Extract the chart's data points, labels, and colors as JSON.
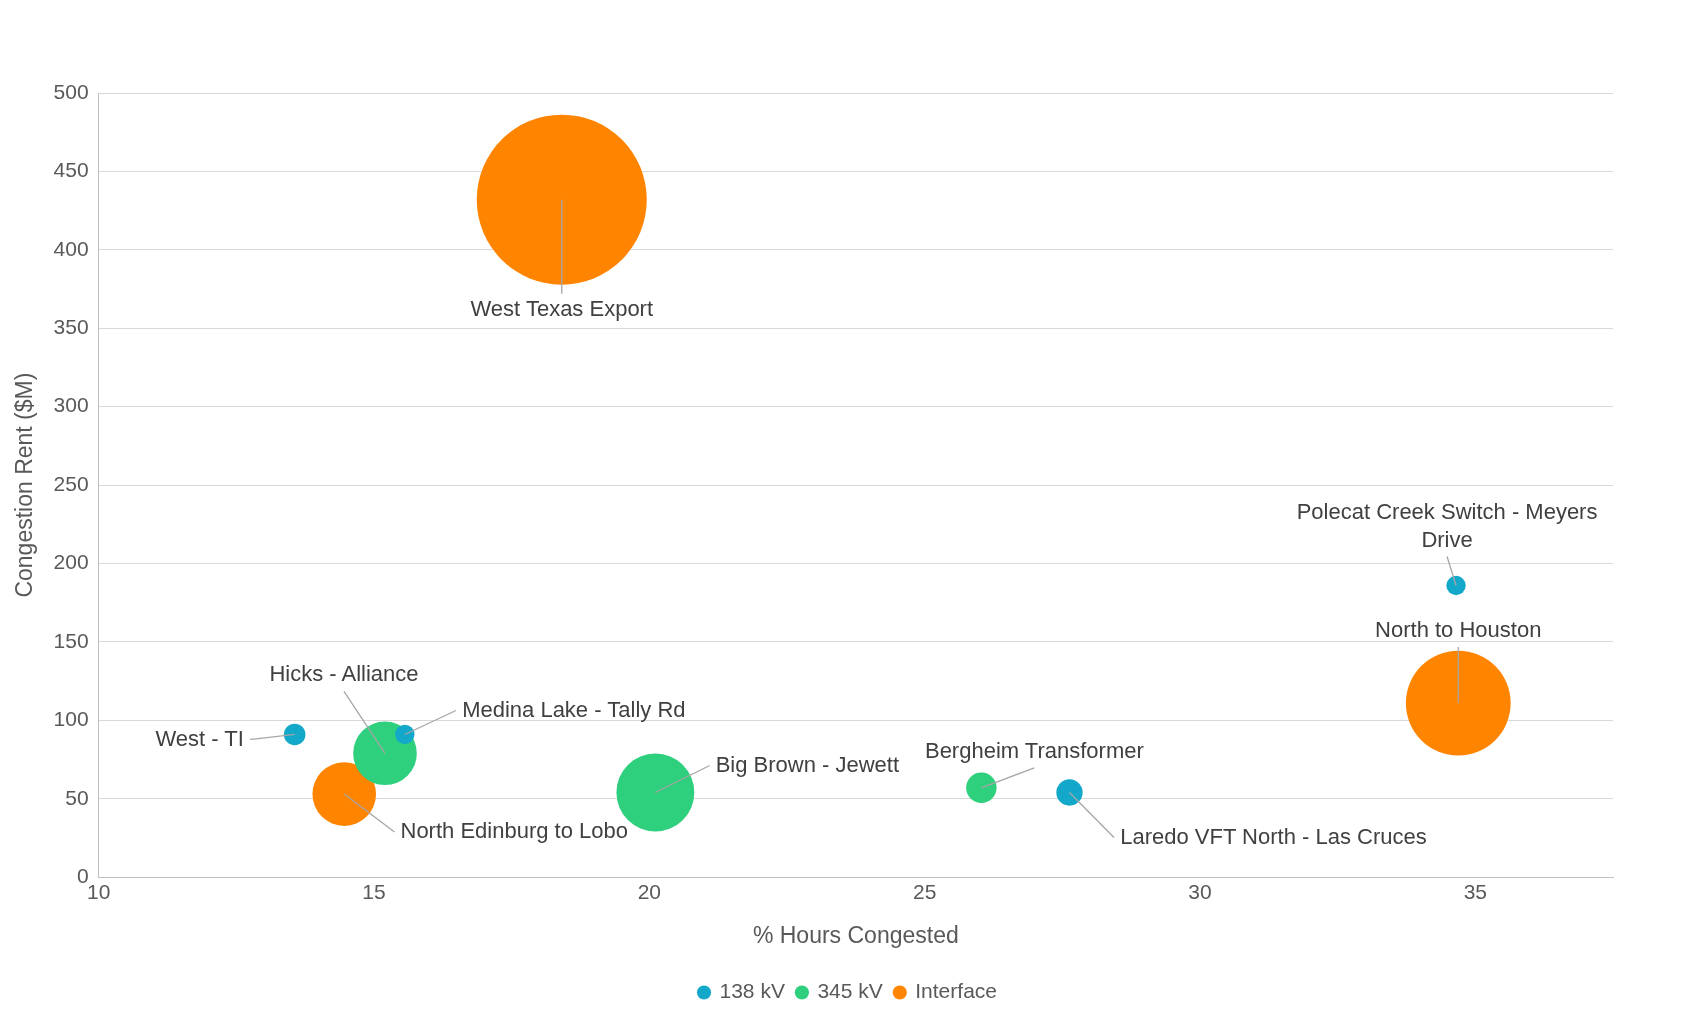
{
  "chart_data": {
    "type": "bubble",
    "xlabel": "% Hours Congested",
    "ylabel": "Congestion Rent ($M)",
    "xlim": [
      10,
      37.5
    ],
    "xticks": [
      10,
      15,
      20,
      25,
      30,
      35
    ],
    "ylim": [
      0,
      500
    ],
    "yticks": [
      0,
      50,
      100,
      150,
      200,
      250,
      300,
      350,
      400,
      450,
      500
    ],
    "grid": "y",
    "legend": "bottom",
    "series": [
      {
        "name": "138 kV",
        "color": "#13a8c9",
        "x": [
          13.56,
          15.56,
          27.63,
          34.65
        ],
        "values": [
          91,
          91,
          54,
          186
        ],
        "sizes": [
          0.016,
          0.013,
          0.024,
          0.013
        ]
      },
      {
        "name": "345 kV",
        "color": "#2ecf7d",
        "x": [
          15.2,
          20.11,
          26.03
        ],
        "values": [
          79,
          54,
          57
        ],
        "sizes": [
          0.14,
          0.21,
          0.032
        ]
      },
      {
        "name": "Interface",
        "color": "#ff8400",
        "x": [
          14.46,
          18.41,
          34.69
        ],
        "values": [
          53,
          432,
          111
        ],
        "sizes": [
          0.14,
          1,
          0.38
        ]
      }
    ],
    "annotations": [
      {
        "text": "West - TI",
        "x": 13.56,
        "y": 91
      },
      {
        "text": "Medina Lake - Tally Rd",
        "x": 15.56,
        "y": 91
      },
      {
        "text": "Hicks - Alliance",
        "x": 15.2,
        "y": 79
      },
      {
        "text": "North Edinburg to Lobo",
        "x": 14.46,
        "y": 53
      },
      {
        "text": "West Texas Export",
        "x": 18.41,
        "y": 432
      },
      {
        "text": "Big Brown - Jewett",
        "x": 20.11,
        "y": 54
      },
      {
        "text": "Bergheim Transformer",
        "x": 26.03,
        "y": 57
      },
      {
        "text": "Laredo VFT North - Las Cruces",
        "x": 27.63,
        "y": 54
      },
      {
        "text": "Polecat Creek Switch - Meyers Drive",
        "x": 34.65,
        "y": 186
      },
      {
        "text": "North to Houston",
        "x": 34.69,
        "y": 111
      }
    ]
  }
}
